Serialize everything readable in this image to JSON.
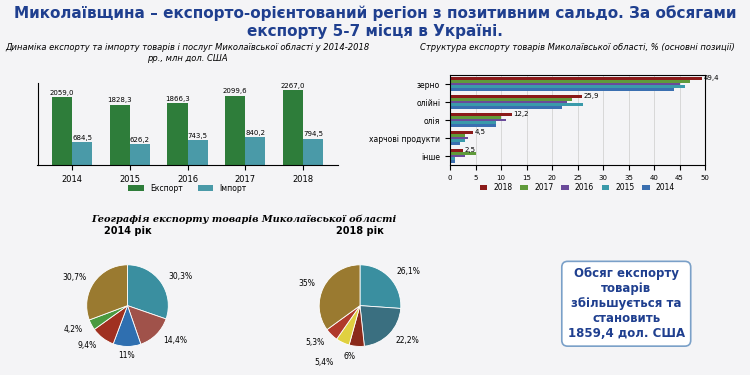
{
  "slide": {
    "title": "Миколаївщина – експорто-орієнтований регіон з позитивним сальдо. За обсягами експорту 5-7 місця в Україні.",
    "callout": "Обсяг експорту\nтоварів\nзбільшується та\nстановить\n1859,4 дол. США"
  },
  "chart_data": [
    {
      "type": "bar",
      "title": "Динаміка експорту та імпорту товарів і послуг Миколаївської області у 2014-2018 рр., млн дол. США",
      "categories": [
        "2014",
        "2015",
        "2016",
        "2017",
        "2018"
      ],
      "series": [
        {
          "name": "Експорт",
          "color": "#2e7d3a",
          "values": [
            2059.0,
            1828.3,
            1866.3,
            2099.6,
            2267.0
          ],
          "value_labels": [
            "2059,0",
            "1828,3",
            "1866,3",
            "2099,6",
            "2267,0"
          ]
        },
        {
          "name": "Імпорт",
          "color": "#4a9aa8",
          "values": [
            684.5,
            626.2,
            743.5,
            840.2,
            794.5
          ],
          "value_labels": [
            "684,5",
            "626,2",
            "743,5",
            "840,2",
            "794,5"
          ]
        }
      ],
      "ylim": [
        0,
        2500
      ],
      "data_labels": true,
      "tick_labels": "x",
      "legend": "lower center"
    },
    {
      "type": "bar",
      "orientation": "horizontal",
      "title": "Структура експорту товарів Миколаївської області, % (основні позиції)",
      "categories": [
        "зерно",
        "олійні",
        "олія",
        "харчові продукти",
        "інше"
      ],
      "series": [
        {
          "name": "2018",
          "color": "#8b1a1a",
          "values": [
            49.4,
            25.9,
            12.2,
            4.5,
            2.5
          ],
          "value_labels": [
            "49,4",
            "25,9",
            "12,2",
            "4,5",
            "2,5"
          ]
        },
        {
          "name": "2017",
          "color": "#5f9a3a",
          "values": [
            47,
            24,
            10,
            3,
            5
          ]
        },
        {
          "name": "2016",
          "color": "#6a4a9a",
          "values": [
            45,
            23,
            11,
            3.5,
            3
          ]
        },
        {
          "name": "2015",
          "color": "#3a9aaa",
          "values": [
            46,
            26,
            9,
            3,
            1
          ]
        },
        {
          "name": "2014",
          "color": "#3a6fb0",
          "values": [
            44,
            22,
            9,
            2,
            1
          ]
        }
      ],
      "xlim": [
        0,
        50
      ],
      "xticks": [
        0,
        5,
        10,
        15,
        20,
        25,
        30,
        35,
        40,
        45,
        50
      ],
      "grid": true,
      "legend": "lower center",
      "data_labels": true
    },
    {
      "type": "pie",
      "title": "Географія експорту товарів Миколаївської області",
      "subtitle": "2014 рік",
      "values": [
        30.3,
        14.4,
        11,
        9.4,
        4.2,
        30.7
      ],
      "value_labels": [
        "30,3%",
        "14,4%",
        "11%",
        "9,4%",
        "4,2%",
        "30,7%"
      ],
      "colors": [
        "#3a8fa0",
        "#a0524a",
        "#2f6fb0",
        "#a03020",
        "#4a9a40",
        "#9a7a30"
      ],
      "data_labels": true
    },
    {
      "type": "pie",
      "subtitle": "2018 рік",
      "values": [
        26.1,
        22.2,
        6,
        5.4,
        5.3,
        35
      ],
      "value_labels": [
        "26,1%",
        "22,2%",
        "6%",
        "5,4%",
        "5,3%",
        "35%"
      ],
      "colors": [
        "#3a8fa0",
        "#3a6f80",
        "#8b2a1a",
        "#e0d040",
        "#b03a2a",
        "#9a7a30"
      ],
      "data_labels": true
    }
  ]
}
